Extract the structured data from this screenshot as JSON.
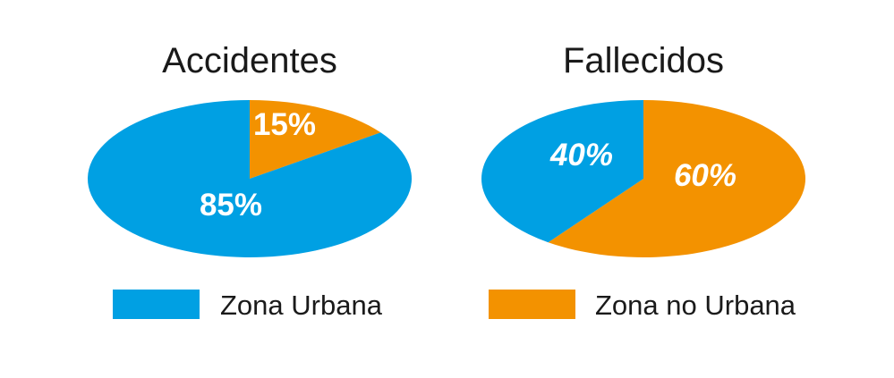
{
  "colors": {
    "urban": "#00a0e3",
    "non_urban": "#f39200",
    "title_text": "#1a1a1a",
    "label_text": "#ffffff",
    "background": "#ffffff"
  },
  "legend": {
    "position": "bottom",
    "items": [
      {
        "label": "Zona Urbana",
        "color": "#00a0e3"
      },
      {
        "label": "Zona no Urbana",
        "color": "#f39200"
      }
    ]
  },
  "chart_data": [
    {
      "type": "pie",
      "title": "Accidentes",
      "slices": [
        {
          "name": "Zona no Urbana",
          "value": 15,
          "label": "15%",
          "color": "#f39200"
        },
        {
          "name": "Zona Urbana",
          "value": 85,
          "label": "85%",
          "color": "#00a0e3"
        }
      ]
    },
    {
      "type": "pie",
      "title": "Fallecidos",
      "slices": [
        {
          "name": "Zona no Urbana",
          "value": 60,
          "label": "60%",
          "color": "#f39200"
        },
        {
          "name": "Zona Urbana",
          "value": 40,
          "label": "40%",
          "color": "#00a0e3"
        }
      ]
    }
  ]
}
